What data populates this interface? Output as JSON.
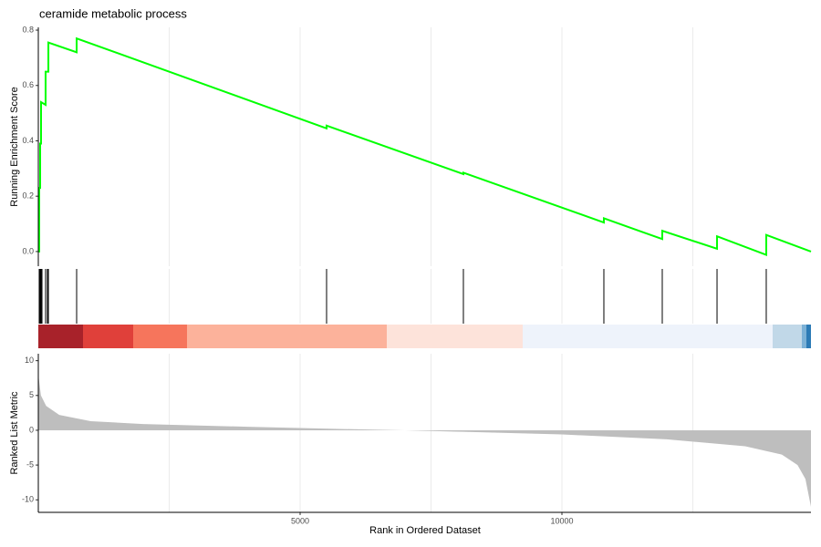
{
  "chart_data": [
    {
      "type": "line",
      "title": "ceramide metabolic process",
      "ylabel": "Running Enrichment Score",
      "color": "#00ff00",
      "x": [
        0,
        17,
        17,
        35,
        35,
        52,
        52,
        139,
        139,
        192,
        192,
        732,
        732,
        5505,
        5505,
        8118,
        8118,
        10801,
        10801,
        11916,
        11916,
        12962,
        12962,
        13902,
        13902,
        14756
      ],
      "values": [
        0,
        0,
        0.23,
        0.23,
        0.39,
        0.39,
        0.54,
        0.53,
        0.65,
        0.65,
        0.755,
        0.72,
        0.77,
        0.445,
        0.455,
        0.28,
        0.285,
        0.105,
        0.12,
        0.045,
        0.075,
        0.01,
        0.055,
        -0.012,
        0.06,
        0
      ],
      "xlim": [
        0,
        14756
      ],
      "ylim": [
        -0.053,
        0.81
      ],
      "yticks": [
        {
          "value": 0,
          "label": "0.0"
        },
        {
          "value": 0.2,
          "label": "0.2"
        },
        {
          "value": 0.4,
          "label": "0.4"
        },
        {
          "value": 0.6,
          "label": "0.6"
        },
        {
          "value": 0.8,
          "label": "0.8"
        }
      ],
      "xgrid": [
        2500,
        5000,
        7500,
        10000,
        12500
      ]
    },
    {
      "type": "rug",
      "x": [
        17,
        35,
        52,
        70,
        139,
        174,
        192,
        732,
        5505,
        8118,
        10801,
        11916,
        12962,
        13902
      ],
      "xlim": [
        0,
        14756
      ],
      "color": "#000000",
      "xgrid": [
        2500,
        5000,
        7500,
        10000,
        12500
      ]
    },
    {
      "type": "area",
      "ylabel": "Ranked List Metric",
      "xlabel": "Rank in Ordered Dataset",
      "color": "#bebebe",
      "x": [
        0,
        50,
        150,
        400,
        1000,
        2000,
        4000,
        6000,
        7000,
        8000,
        10000,
        12000,
        13500,
        14200,
        14500,
        14650,
        14756
      ],
      "values": [
        8,
        5,
        3.5,
        2.2,
        1.3,
        0.9,
        0.5,
        0.15,
        0,
        -0.2,
        -0.6,
        -1.3,
        -2.3,
        -3.5,
        -5,
        -7,
        -11
      ],
      "xlim": [
        0,
        14756
      ],
      "ylim": [
        -11.8,
        11
      ],
      "yticks": [
        -10,
        -5,
        0,
        5,
        10
      ],
      "xticks": [
        5000,
        10000
      ],
      "xgrid": [
        2500,
        5000,
        7500,
        10000,
        12500
      ]
    }
  ]
}
